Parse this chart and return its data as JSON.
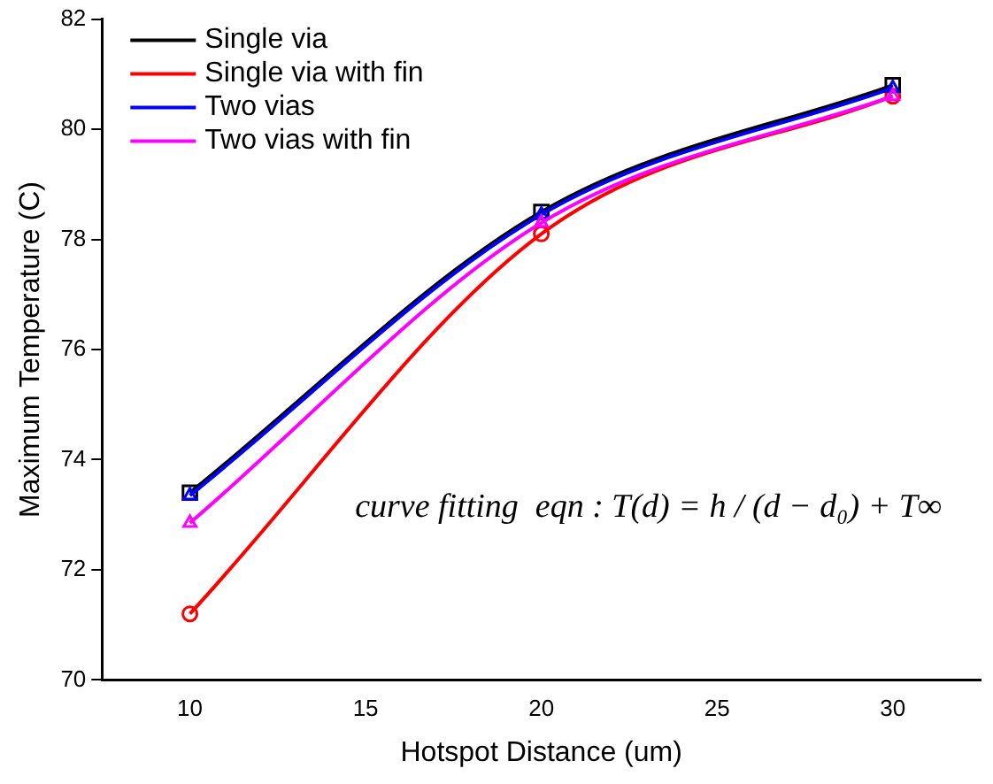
{
  "chart_data": {
    "type": "line",
    "xlabel": "Hotspot Distance (um)",
    "ylabel": "Maximum Temperature (C)",
    "x": [
      10,
      20,
      30
    ],
    "series": [
      {
        "name": "Single via",
        "color": "#000000",
        "marker": "square",
        "values": [
          73.4,
          78.5,
          80.8
        ]
      },
      {
        "name": "Single via with fin",
        "color": "#ff0000",
        "marker": "circle",
        "values": [
          71.2,
          78.1,
          80.6
        ]
      },
      {
        "name": "Two vias",
        "color": "#0000ff",
        "marker": "triangle",
        "values": [
          73.35,
          78.45,
          80.75
        ]
      },
      {
        "name": "Two vias with fin",
        "color": "#ff00ff",
        "marker": "triangle",
        "values": [
          72.85,
          78.3,
          80.6
        ]
      }
    ],
    "xlim": [
      7.5,
      32.5
    ],
    "xticks": [
      10,
      15,
      20,
      25,
      30
    ],
    "ylim": [
      70,
      82
    ],
    "yticks": [
      70,
      72,
      74,
      76,
      78,
      80,
      82
    ],
    "grid": false,
    "legend": "top left",
    "annotations": [
      "curve fitting  eqn : T(d) = h / (d − d₀) + T∞"
    ]
  }
}
